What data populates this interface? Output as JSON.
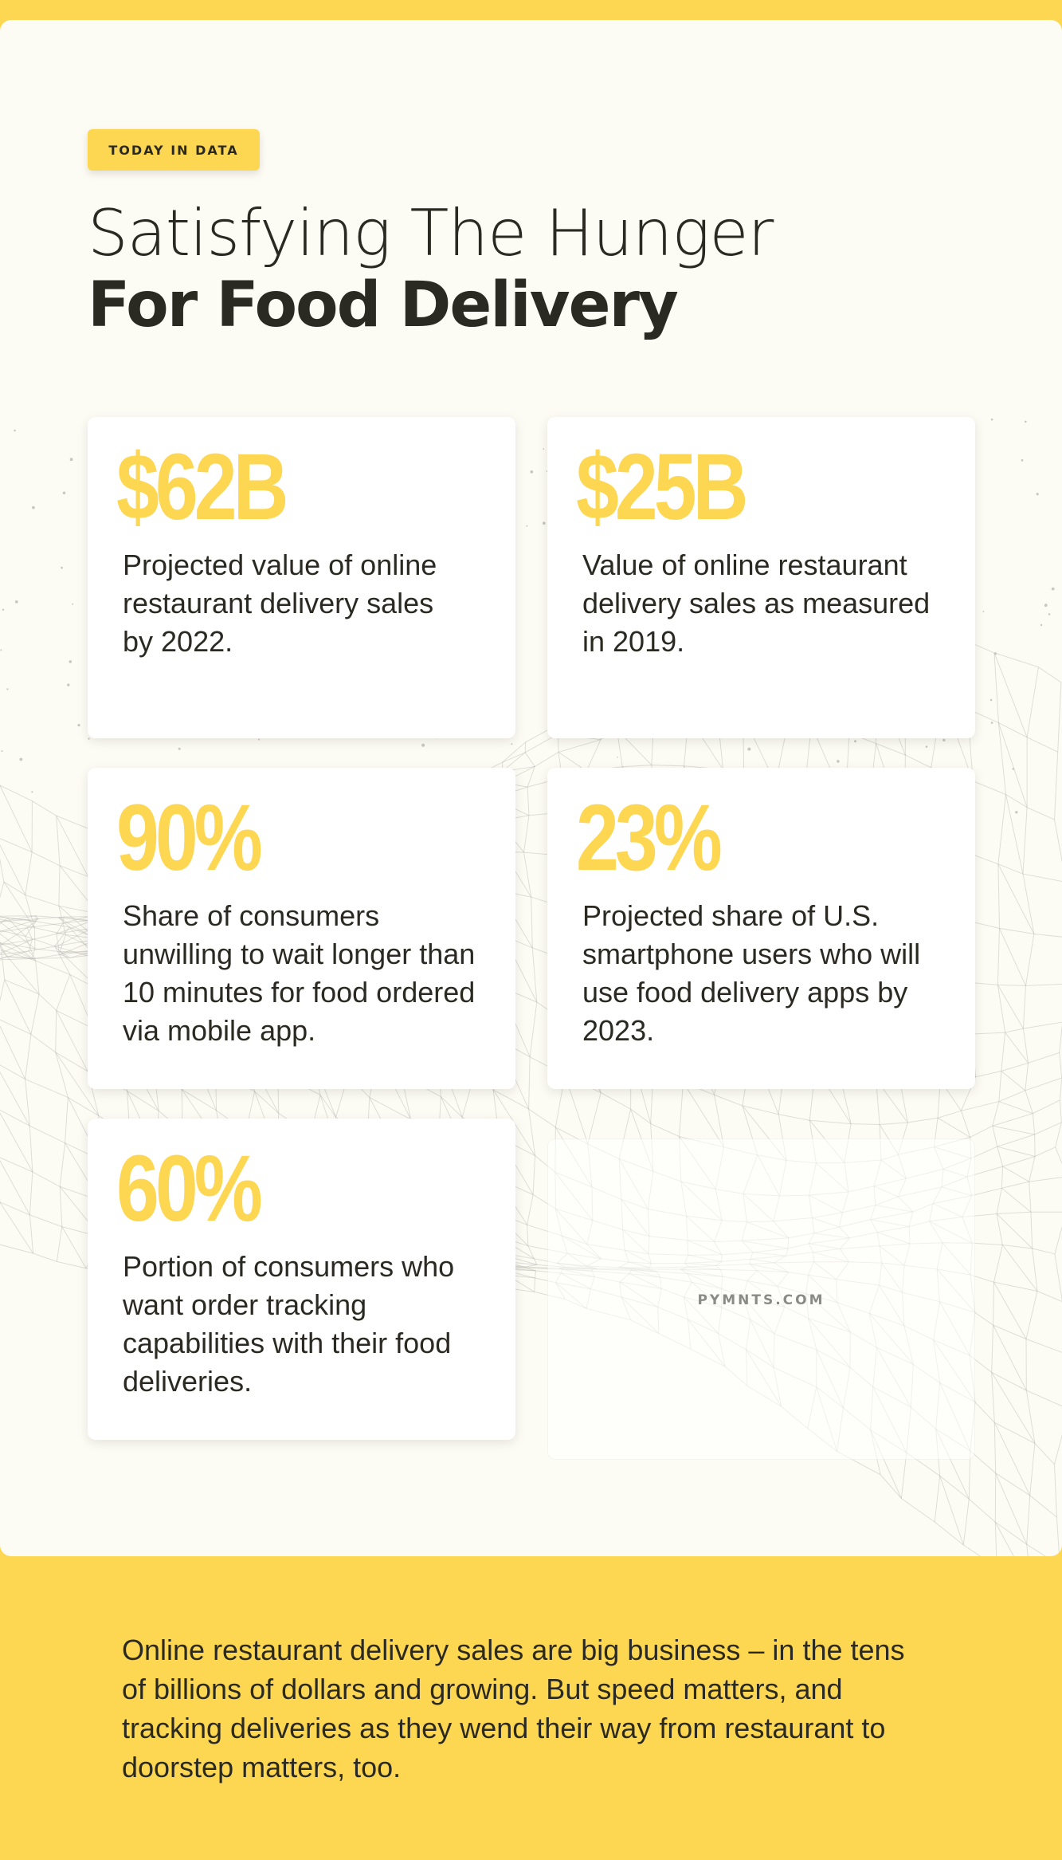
{
  "header": {
    "tag": "TODAY IN DATA",
    "title_line1": "Satisfying The Hunger",
    "title_line2": "For Food Delivery"
  },
  "stats": [
    {
      "value": "$62B",
      "description": "Projected value of online restaurant delivery sales by 2022."
    },
    {
      "value": "$25B",
      "description": "Value of online restaurant delivery sales as measured in 2019."
    },
    {
      "value": "90%",
      "description": "Share of consumers unwilling to wait longer than 10 minutes for food ordered via mobile app."
    },
    {
      "value": "23%",
      "description": "Projected share of U.S. smartphone users who will use food delivery apps by 2023."
    },
    {
      "value": "60%",
      "description": "Portion of consumers who want order tracking capabilities with their food deliveries."
    }
  ],
  "brand": "PYMNTS.COM",
  "summary": "Online restaurant delivery sales are big business – in the tens of billions of dollars and growing. But speed matters, and tracking deliveries as they wend their way from restaurant to doorstep matters, too.",
  "colors": {
    "accent_yellow": "#fdd752",
    "panel_background": "#fdfcf4",
    "text_dark": "#2b2a22"
  }
}
